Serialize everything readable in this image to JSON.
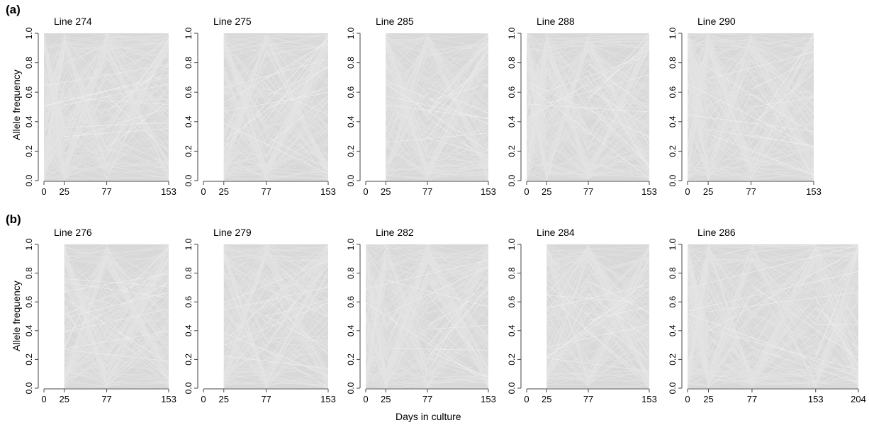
{
  "figure": {
    "panel_labels": [
      "(a)",
      "(b)"
    ],
    "ylabel": "Allele frequency",
    "xlabel": "Days in culture",
    "colors": {
      "lines": "#d6d6d6",
      "axis": "#444444"
    }
  },
  "chart_data": [
    {
      "type": "line",
      "title": "Line 274",
      "row": "a",
      "x_ticks": [
        0,
        25,
        77,
        153
      ],
      "xlim": [
        0,
        153
      ],
      "sample_days": [
        0,
        25,
        77,
        153
      ],
      "ylim": [
        0,
        1
      ],
      "y_ticks": [
        "0.0",
        "0.2",
        "0.4",
        "0.6",
        "0.8",
        "1.0"
      ]
    },
    {
      "type": "line",
      "title": "Line 275",
      "row": "a",
      "x_ticks": [
        0,
        25,
        77,
        153
      ],
      "xlim": [
        0,
        153
      ],
      "sample_days": [
        25,
        77,
        153
      ],
      "ylim": [
        0,
        1
      ],
      "y_ticks": [
        "0.0",
        "0.2",
        "0.4",
        "0.6",
        "0.8",
        "1.0"
      ]
    },
    {
      "type": "line",
      "title": "Line 285",
      "row": "a",
      "x_ticks": [
        0,
        25,
        77,
        153
      ],
      "xlim": [
        0,
        153
      ],
      "sample_days": [
        25,
        77,
        153
      ],
      "ylim": [
        0,
        1
      ],
      "y_ticks": [
        "0.0",
        "0.2",
        "0.4",
        "0.6",
        "0.8",
        "1.0"
      ]
    },
    {
      "type": "line",
      "title": "Line 288",
      "row": "a",
      "x_ticks": [
        0,
        25,
        77,
        153
      ],
      "xlim": [
        0,
        153
      ],
      "sample_days": [
        0,
        25,
        77,
        153
      ],
      "ylim": [
        0,
        1
      ],
      "y_ticks": [
        "0.0",
        "0.2",
        "0.4",
        "0.6",
        "0.8",
        "1.0"
      ]
    },
    {
      "type": "line",
      "title": "Line 290",
      "row": "a",
      "x_ticks": [
        0,
        25,
        77,
        153
      ],
      "xlim": [
        0,
        153
      ],
      "sample_days": [
        0,
        25,
        77,
        153
      ],
      "ylim": [
        0,
        1
      ],
      "y_ticks": [
        "0.0",
        "0.2",
        "0.4",
        "0.6",
        "0.8",
        "1.0"
      ]
    },
    {
      "type": "line",
      "title": "Line 276",
      "row": "b",
      "x_ticks": [
        0,
        25,
        77,
        153
      ],
      "xlim": [
        0,
        153
      ],
      "sample_days": [
        25,
        77,
        153
      ],
      "ylim": [
        0,
        1
      ],
      "y_ticks": [
        "0.0",
        "0.2",
        "0.4",
        "0.6",
        "0.8",
        "1.0"
      ]
    },
    {
      "type": "line",
      "title": "Line 279",
      "row": "b",
      "x_ticks": [
        0,
        25,
        77,
        153
      ],
      "xlim": [
        0,
        153
      ],
      "sample_days": [
        25,
        77,
        153
      ],
      "ylim": [
        0,
        1
      ],
      "y_ticks": [
        "0.0",
        "0.2",
        "0.4",
        "0.6",
        "0.8",
        "1.0"
      ]
    },
    {
      "type": "line",
      "title": "Line 282",
      "row": "b",
      "x_ticks": [
        0,
        25,
        77,
        153
      ],
      "xlim": [
        0,
        153
      ],
      "sample_days": [
        0,
        25,
        77,
        153
      ],
      "ylim": [
        0,
        1
      ],
      "y_ticks": [
        "0.0",
        "0.2",
        "0.4",
        "0.6",
        "0.8",
        "1.0"
      ]
    },
    {
      "type": "line",
      "title": "Line 284",
      "row": "b",
      "x_ticks": [
        0,
        25,
        77,
        153
      ],
      "xlim": [
        0,
        153
      ],
      "sample_days": [
        25,
        77,
        153
      ],
      "ylim": [
        0,
        1
      ],
      "y_ticks": [
        "0.0",
        "0.2",
        "0.4",
        "0.6",
        "0.8",
        "1.0"
      ]
    },
    {
      "type": "line",
      "title": "Line 286",
      "row": "b",
      "x_ticks": [
        0,
        25,
        77,
        153,
        204
      ],
      "xlim": [
        0,
        204
      ],
      "sample_days": [
        0,
        25,
        77,
        153,
        204
      ],
      "ylim": [
        0,
        1
      ],
      "y_ticks": [
        "0.0",
        "0.2",
        "0.4",
        "0.6",
        "0.8",
        "1.0"
      ]
    }
  ]
}
